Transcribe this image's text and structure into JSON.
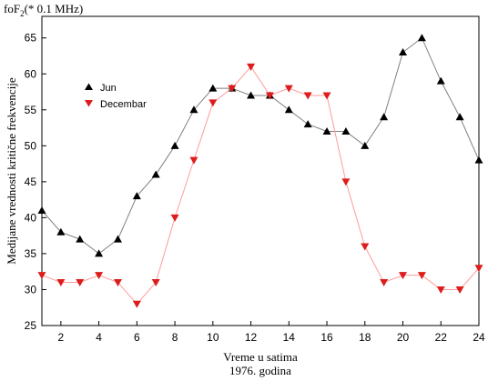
{
  "chart_data": {
    "type": "line",
    "title": "",
    "corner_label": {
      "prefix": "foF",
      "subscript": "2",
      "suffix": "(* 0.1 MHz)"
    },
    "xlabel": "Vreme u satima",
    "subtitle": "1976. godina",
    "ylabel": "Medijane vrednosti kritične frekvencije",
    "xlim": [
      1,
      24
    ],
    "ylim": [
      25,
      68
    ],
    "xticks": [
      2,
      4,
      6,
      8,
      10,
      12,
      14,
      16,
      18,
      20,
      22,
      24
    ],
    "yticks": [
      25,
      30,
      35,
      40,
      45,
      50,
      55,
      60,
      65
    ],
    "grid": false,
    "legend_position": "upper-left",
    "x": [
      1,
      2,
      3,
      4,
      5,
      6,
      7,
      8,
      9,
      10,
      11,
      12,
      13,
      14,
      15,
      16,
      17,
      18,
      19,
      20,
      21,
      22,
      23,
      24
    ],
    "series": [
      {
        "name": "Jun",
        "marker": "triangle-up",
        "marker_color": "#000000",
        "line_color": "#808080",
        "values": [
          41,
          38,
          37,
          35,
          37,
          43,
          46,
          50,
          55,
          58,
          58,
          57,
          57,
          55,
          53,
          52,
          52,
          50,
          54,
          63,
          65,
          59,
          54,
          48
        ]
      },
      {
        "name": "Decembar",
        "marker": "triangle-down",
        "marker_color": "#dd1c1c",
        "line_color": "#ff9a9a",
        "values": [
          32,
          31,
          31,
          32,
          31,
          28,
          31,
          40,
          48,
          56,
          58,
          61,
          57,
          58,
          57,
          57,
          45,
          36,
          31,
          32,
          32,
          30,
          30,
          33
        ]
      }
    ]
  }
}
